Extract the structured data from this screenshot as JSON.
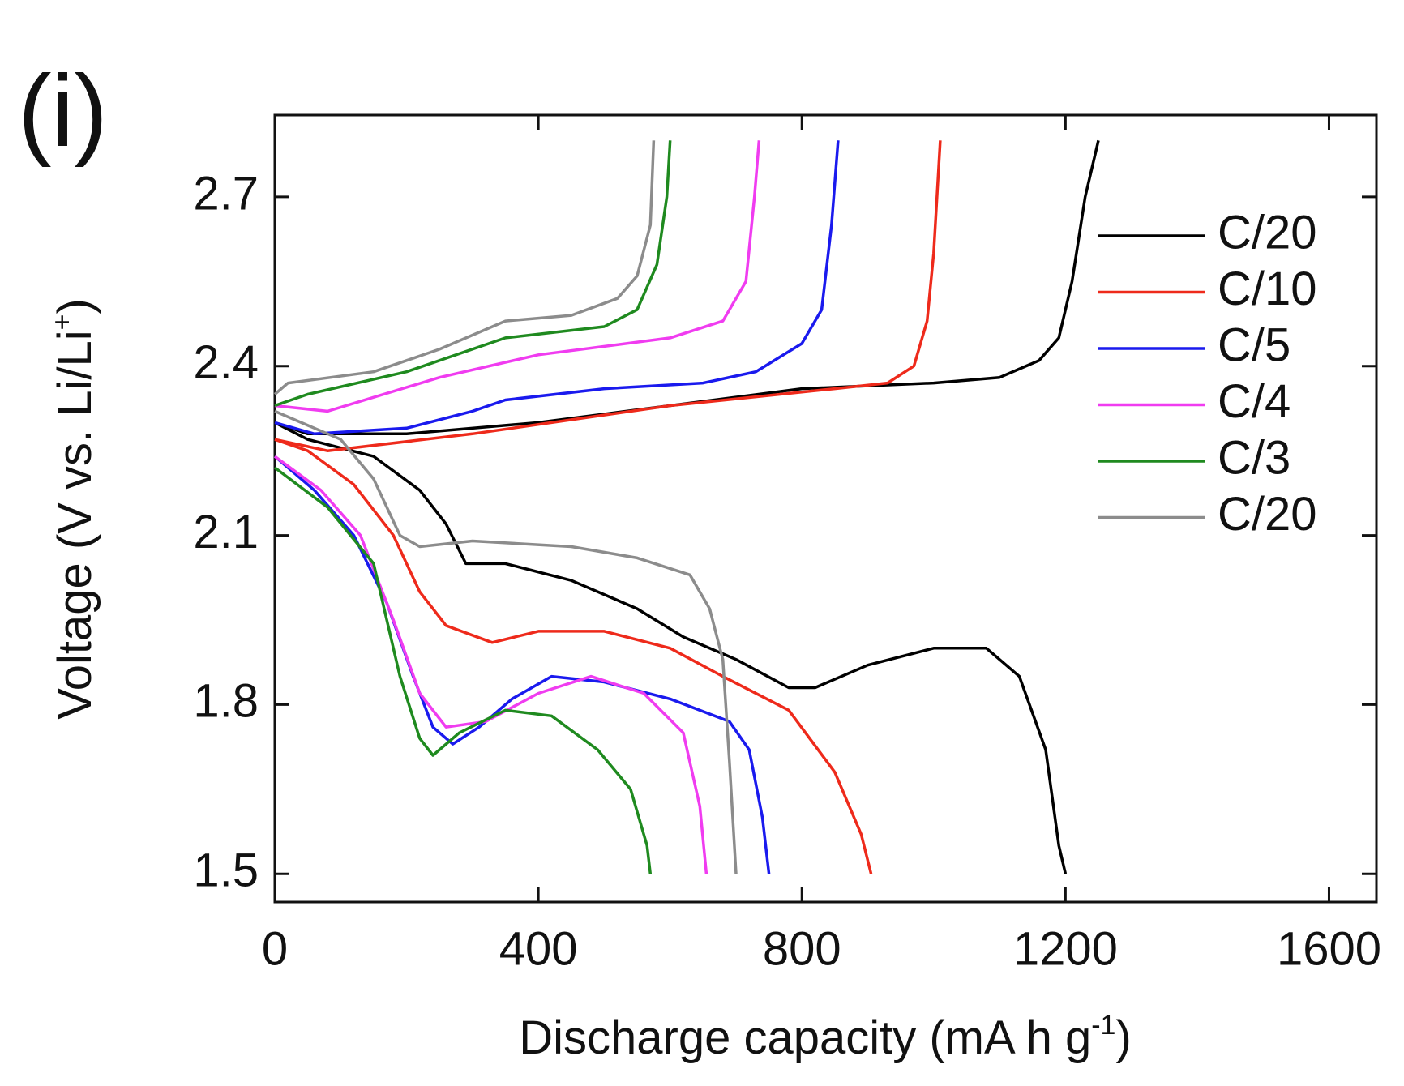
{
  "chart_data": {
    "type": "line",
    "panel_label": "(i)",
    "x_label": [
      "Discharge capacity (mA h g",
      "-1",
      ")"
    ],
    "y_label": [
      "Voltage (V vs. Li/Li",
      "+",
      ")"
    ],
    "xlim": [
      0,
      1672
    ],
    "ylim": [
      1.45,
      2.845
    ],
    "xticks": [
      0,
      400,
      800,
      1200,
      1600
    ],
    "yticks": [
      1.5,
      1.8,
      2.1,
      2.4,
      2.7
    ],
    "legend": "upper right",
    "series": [
      {
        "name": "C/20",
        "color": "#000000",
        "x": [
          0,
          50,
          150,
          220,
          260,
          290,
          350,
          450,
          550,
          620,
          700,
          780,
          820,
          900,
          1000,
          1080,
          1130,
          1170,
          1190,
          1200,
          null,
          0,
          50,
          200,
          400,
          600,
          800,
          1000,
          1100,
          1160,
          1190,
          1210,
          1230,
          1250
        ],
        "values": [
          2.3,
          2.27,
          2.24,
          2.18,
          2.12,
          2.05,
          2.05,
          2.02,
          1.97,
          1.92,
          1.88,
          1.83,
          1.83,
          1.87,
          1.9,
          1.9,
          1.85,
          1.72,
          1.55,
          1.5,
          null,
          2.3,
          2.28,
          2.28,
          2.3,
          2.33,
          2.36,
          2.37,
          2.38,
          2.41,
          2.45,
          2.55,
          2.7,
          2.8
        ]
      },
      {
        "name": "C/10",
        "color": "#ee2a1b",
        "x": [
          0,
          50,
          120,
          180,
          220,
          260,
          330,
          400,
          500,
          600,
          680,
          780,
          850,
          890,
          905,
          null,
          0,
          80,
          300,
          600,
          850,
          930,
          970,
          990,
          1000,
          1010
        ],
        "values": [
          2.27,
          2.25,
          2.19,
          2.1,
          2.0,
          1.94,
          1.91,
          1.93,
          1.93,
          1.9,
          1.85,
          1.79,
          1.68,
          1.57,
          1.5,
          null,
          2.27,
          2.25,
          2.28,
          2.33,
          2.36,
          2.37,
          2.4,
          2.48,
          2.6,
          2.8
        ]
      },
      {
        "name": "C/5",
        "color": "#1a1aee",
        "x": [
          0,
          60,
          120,
          170,
          210,
          240,
          270,
          310,
          360,
          420,
          500,
          600,
          690,
          720,
          740,
          750,
          null,
          0,
          60,
          200,
          300,
          350,
          500,
          650,
          730,
          800,
          830,
          845,
          855
        ],
        "values": [
          2.24,
          2.18,
          2.1,
          1.98,
          1.85,
          1.76,
          1.73,
          1.76,
          1.81,
          1.85,
          1.84,
          1.81,
          1.77,
          1.72,
          1.6,
          1.5,
          null,
          2.3,
          2.28,
          2.29,
          2.32,
          2.34,
          2.36,
          2.37,
          2.39,
          2.44,
          2.5,
          2.65,
          2.8
        ]
      },
      {
        "name": "C/4",
        "color": "#f03cf0",
        "x": [
          0,
          70,
          130,
          180,
          220,
          260,
          320,
          400,
          480,
          560,
          620,
          645,
          655,
          null,
          0,
          80,
          250,
          400,
          600,
          680,
          715,
          728,
          735
        ],
        "values": [
          2.24,
          2.18,
          2.1,
          1.95,
          1.82,
          1.76,
          1.77,
          1.82,
          1.85,
          1.82,
          1.75,
          1.62,
          1.5,
          null,
          2.33,
          2.32,
          2.38,
          2.42,
          2.45,
          2.48,
          2.55,
          2.7,
          2.8
        ]
      },
      {
        "name": "C/3",
        "color": "#1f8a1f",
        "x": [
          0,
          80,
          150,
          190,
          220,
          240,
          280,
          350,
          420,
          490,
          540,
          565,
          570,
          null,
          0,
          50,
          200,
          350,
          500,
          550,
          580,
          595,
          600
        ],
        "values": [
          2.22,
          2.15,
          2.05,
          1.85,
          1.74,
          1.71,
          1.75,
          1.79,
          1.78,
          1.72,
          1.65,
          1.55,
          1.5,
          null,
          2.33,
          2.35,
          2.39,
          2.45,
          2.47,
          2.5,
          2.58,
          2.7,
          2.8
        ]
      },
      {
        "name": "C/20",
        "color": "#8c8c8c",
        "x": [
          0,
          100,
          150,
          190,
          220,
          300,
          450,
          550,
          630,
          660,
          680,
          690,
          700,
          null,
          0,
          20,
          150,
          250,
          350,
          450,
          520,
          550,
          570,
          575
        ],
        "values": [
          2.32,
          2.27,
          2.2,
          2.1,
          2.08,
          2.09,
          2.08,
          2.06,
          2.03,
          1.97,
          1.88,
          1.7,
          1.5,
          null,
          2.35,
          2.37,
          2.39,
          2.43,
          2.48,
          2.49,
          2.52,
          2.56,
          2.65,
          2.8
        ]
      }
    ]
  }
}
